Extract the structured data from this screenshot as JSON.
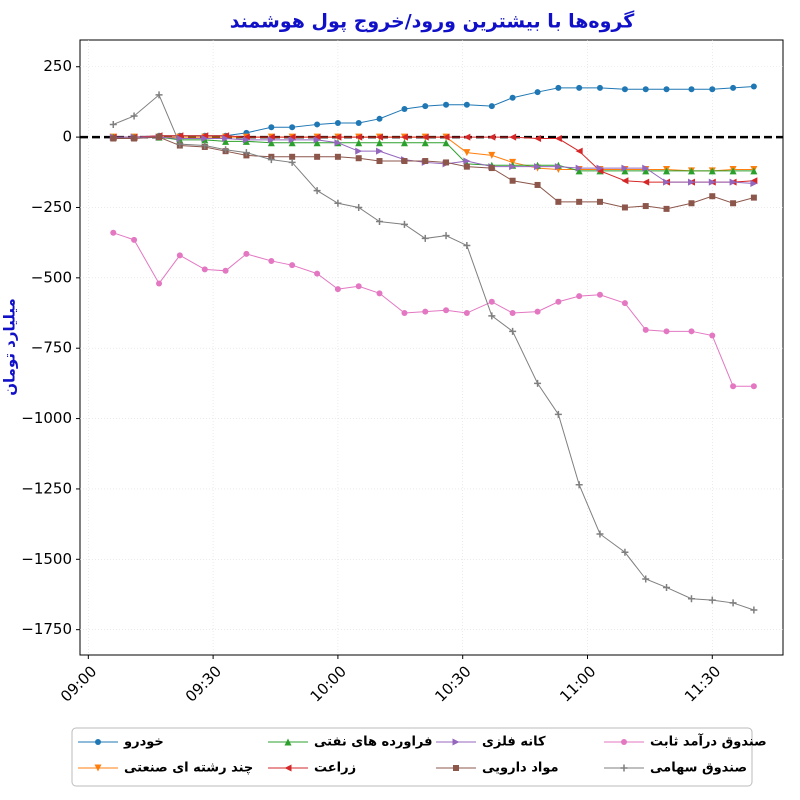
{
  "chart_data": {
    "type": "line",
    "title": "گروه‌ها با بیشترین ورود/خروج پول هوشمند",
    "y_label": "میلیارد تومان",
    "x": [
      "09:06",
      "09:11",
      "09:17",
      "09:22",
      "09:28",
      "09:33",
      "09:38",
      "09:44",
      "09:49",
      "09:55",
      "10:00",
      "10:05",
      "10:10",
      "10:16",
      "10:21",
      "10:26",
      "10:31",
      "10:37",
      "10:42",
      "10:48",
      "10:53",
      "10:58",
      "11:03",
      "11:09",
      "11:14",
      "11:19",
      "11:25",
      "11:30",
      "11:35",
      "11:40"
    ],
    "xlim": [
      "08:58",
      "11:47"
    ],
    "xticks": [
      "09:00",
      "09:30",
      "10:00",
      "10:30",
      "11:00",
      "11:30"
    ],
    "ylim": [
      -1840,
      345
    ],
    "yticks": [
      250,
      0,
      {
        "value": -250,
        "label": "−250"
      },
      {
        "value": -500,
        "label": "−500"
      },
      {
        "value": -750,
        "label": "−750"
      },
      {
        "value": -1000,
        "label": "−1000"
      },
      {
        "value": -1250,
        "label": "−1250"
      },
      {
        "value": -1500,
        "label": "−1500"
      },
      {
        "value": -1750,
        "label": "−1750"
      }
    ],
    "grid": true,
    "zero_line": true,
    "series": [
      {
        "name": "خودرو",
        "color": "#1f77b4",
        "marker": "circle",
        "values": [
          0,
          0,
          5,
          5,
          5,
          5,
          15,
          35,
          35,
          45,
          50,
          50,
          65,
          100,
          110,
          115,
          115,
          110,
          140,
          160,
          175,
          175,
          175,
          170,
          170,
          170,
          170,
          170,
          175,
          180
        ]
      },
      {
        "name": "چند رشته ای صنعتی",
        "color": "#ff7f0e",
        "marker": "down",
        "values": [
          0,
          0,
          0,
          0,
          0,
          0,
          0,
          0,
          0,
          0,
          0,
          0,
          0,
          0,
          0,
          0,
          -55,
          -65,
          -90,
          -110,
          -115,
          -115,
          -115,
          -115,
          -115,
          -115,
          -120,
          -120,
          -115,
          -115
        ]
      },
      {
        "name": "فراورده های نفتی",
        "color": "#2ca02c",
        "marker": "up",
        "values": [
          0,
          0,
          0,
          -10,
          -10,
          -15,
          -15,
          -20,
          -20,
          -20,
          -20,
          -20,
          -20,
          -20,
          -20,
          -20,
          -95,
          -100,
          -100,
          -100,
          -100,
          -120,
          -120,
          -120,
          -120,
          -120,
          -120,
          -120,
          -120,
          -120
        ]
      },
      {
        "name": "زراعت",
        "color": "#d62728",
        "marker": "left",
        "values": [
          0,
          0,
          5,
          5,
          5,
          5,
          0,
          0,
          0,
          0,
          0,
          0,
          0,
          0,
          0,
          0,
          0,
          0,
          0,
          -5,
          -5,
          -50,
          -120,
          -155,
          -160,
          -160,
          -160,
          -160,
          -160,
          -155
        ]
      },
      {
        "name": "کانه فلزی",
        "color": "#9467bd",
        "marker": "right",
        "values": [
          0,
          0,
          0,
          -5,
          -5,
          -5,
          -10,
          -10,
          -10,
          -10,
          -20,
          -50,
          -50,
          -80,
          -90,
          -95,
          -85,
          -105,
          -105,
          -105,
          -105,
          -110,
          -110,
          -110,
          -110,
          -160,
          -160,
          -160,
          -160,
          -165
        ]
      },
      {
        "name": "مواد دارویی",
        "color": "#8c564b",
        "marker": "square",
        "values": [
          -5,
          -5,
          0,
          -30,
          -35,
          -50,
          -65,
          -70,
          -70,
          -70,
          -70,
          -75,
          -85,
          -85,
          -85,
          -90,
          -105,
          -110,
          -155,
          -170,
          -230,
          -230,
          -230,
          -250,
          -245,
          -255,
          -235,
          -210,
          -235,
          -215
        ]
      },
      {
        "name": "صندوق درآمد ثابت",
        "color": "#e377c2",
        "marker": "circle",
        "values": [
          -340,
          -365,
          -520,
          -420,
          -470,
          -475,
          -415,
          -440,
          -455,
          -485,
          -540,
          -530,
          -555,
          -625,
          -620,
          -615,
          -625,
          -585,
          -625,
          -620,
          -585,
          -565,
          -560,
          -590,
          -685,
          -690,
          -690,
          -705,
          -885,
          -885
        ]
      },
      {
        "name": "صندوق سهامی",
        "color": "#7f7f7f",
        "marker": "plus",
        "values": [
          45,
          75,
          150,
          -25,
          -30,
          -45,
          -55,
          -80,
          -90,
          -190,
          -235,
          -250,
          -300,
          -310,
          -360,
          -350,
          -385,
          -635,
          -690,
          -875,
          -985,
          -1235,
          -1410,
          -1475,
          -1570,
          -1600,
          -1640,
          -1645,
          -1655,
          -1680
        ]
      }
    ]
  }
}
